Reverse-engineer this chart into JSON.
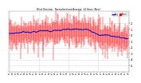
{
  "title": "Wind Direction   Normalized and Average  24 Hours (New)",
  "legend_labels": [
    "Avg",
    "Norm"
  ],
  "legend_colors": [
    "#0000ff",
    "#ff0000"
  ],
  "ylim": [
    -6,
    4
  ],
  "yticks": [
    2,
    1,
    0,
    -1,
    -2,
    -3,
    -4,
    -5
  ],
  "ytick_labels": [
    "2",
    "1",
    "0",
    "-1",
    "-2",
    "-3",
    "-4",
    "-5"
  ],
  "n_points": 200,
  "background_color": "#ffffff",
  "bar_color": "#ff0000",
  "line_color": "#0000cc",
  "grid_color": "#aaaaaa",
  "seed": 7
}
